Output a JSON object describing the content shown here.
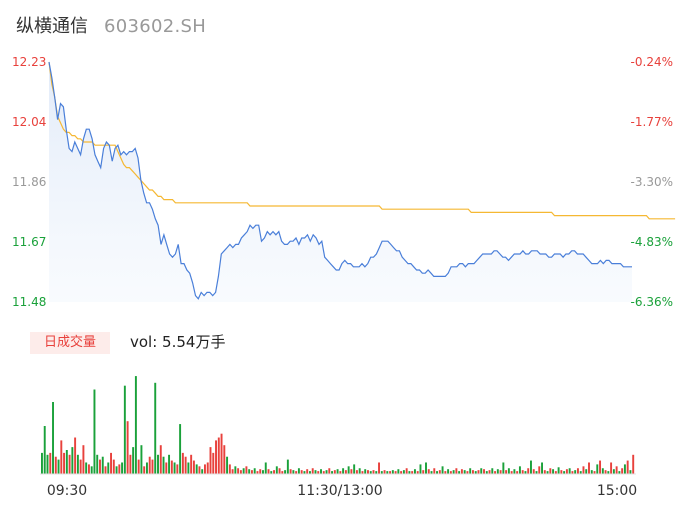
{
  "header": {
    "stock_name": "纵横通信",
    "stock_code": "603602.SH"
  },
  "volume": {
    "badge_label": "日成交量",
    "vol_prefix": "vol: ",
    "vol_value": "5.54万手"
  },
  "colors": {
    "up": "#e8413c",
    "down": "#1aa13a",
    "neutral": "#999999",
    "price_line": "#4a7fd9",
    "avg_line": "#f5b833"
  },
  "chart_data": [
    {
      "type": "line",
      "title": "",
      "xlabel": "",
      "ylabel": "",
      "x_ticks": [
        "09:30",
        "11:30/13:00",
        "15:00"
      ],
      "y_ticks_left": [
        "12.23",
        "12.04",
        "11.86",
        "11.67",
        "11.48"
      ],
      "y_ticks_right": [
        "-0.24%",
        "-1.77%",
        "-3.30%",
        "-4.83%",
        "-6.36%"
      ],
      "ylim": [
        11.48,
        12.23
      ],
      "grid": false,
      "series": [
        {
          "values": [
            12.23,
            12.18,
            12.12,
            12.05,
            12.1,
            12.09,
            12.02,
            11.96,
            11.95,
            11.98,
            11.96,
            11.94,
            11.99,
            12.02,
            12.02,
            11.99,
            11.94,
            11.92,
            11.9,
            11.96,
            11.98,
            11.97,
            11.92,
            11.96,
            11.97,
            11.94,
            11.95,
            11.94,
            11.95,
            11.95,
            11.96,
            11.93,
            11.86,
            11.82,
            11.79,
            11.79,
            11.77,
            11.74,
            11.72,
            11.66,
            11.69,
            11.66,
            11.63,
            11.62,
            11.63,
            11.66,
            11.6,
            11.6,
            11.58,
            11.57,
            11.54,
            11.5,
            11.49,
            11.51,
            11.5,
            11.51,
            11.51,
            11.5,
            11.51,
            11.56,
            11.63,
            11.64,
            11.65,
            11.66,
            11.65,
            11.66,
            11.66,
            11.68,
            11.69,
            11.7,
            11.72,
            11.71,
            11.72,
            11.72,
            11.67,
            11.68,
            11.7,
            11.69,
            11.7,
            11.69,
            11.7,
            11.67,
            11.66,
            11.66,
            11.67,
            11.67,
            11.68,
            11.66,
            11.68,
            11.68,
            11.69,
            11.67,
            11.69,
            11.68,
            11.66,
            11.67,
            11.62,
            11.61,
            11.6,
            11.59,
            11.58,
            11.58,
            11.6,
            11.61,
            11.6,
            11.6,
            11.59,
            11.59,
            11.59,
            11.6,
            11.59,
            11.6,
            11.62,
            11.62,
            11.63,
            11.65,
            11.67,
            11.67,
            11.67,
            11.66,
            11.65,
            11.64,
            11.64,
            11.62,
            11.61,
            11.6,
            11.6,
            11.59,
            11.58,
            11.58,
            11.57,
            11.57,
            11.58,
            11.57,
            11.56,
            11.56,
            11.56,
            11.56,
            11.56,
            11.57,
            11.59,
            11.59,
            11.59,
            11.6,
            11.6,
            11.59,
            11.6,
            11.6,
            11.6,
            11.61,
            11.62,
            11.63,
            11.63,
            11.63,
            11.63,
            11.64,
            11.64,
            11.63,
            11.62,
            11.62,
            11.61,
            11.62,
            11.63,
            11.63,
            11.63,
            11.64,
            11.63,
            11.63,
            11.64,
            11.64,
            11.64,
            11.63,
            11.63,
            11.63,
            11.62,
            11.62,
            11.63,
            11.63,
            11.63,
            11.62,
            11.63,
            11.63,
            11.64,
            11.64,
            11.63,
            11.63,
            11.63,
            11.62,
            11.61,
            11.6,
            11.6,
            11.6,
            11.61,
            11.6,
            11.61,
            11.61,
            11.6,
            11.6,
            11.6,
            11.6,
            11.59,
            11.59,
            11.59,
            11.59
          ]
        },
        {
          "values": [
            12.23,
            12.16,
            12.12,
            12.06,
            12.04,
            12.02,
            12.01,
            12.01,
            12.0,
            12.0,
            11.99,
            11.99,
            11.98,
            11.98,
            11.98,
            11.98,
            11.97,
            11.97,
            11.97,
            11.97,
            11.97,
            11.97,
            11.97,
            11.97,
            11.95,
            11.93,
            11.91,
            11.9,
            11.9,
            11.89,
            11.88,
            11.87,
            11.86,
            11.85,
            11.84,
            11.83,
            11.83,
            11.82,
            11.81,
            11.81,
            11.8,
            11.8,
            11.8,
            11.8,
            11.79,
            11.79,
            11.79,
            11.79,
            11.79,
            11.79,
            11.79,
            11.79,
            11.79,
            11.79,
            11.79,
            11.79,
            11.79,
            11.79,
            11.79,
            11.79,
            11.79,
            11.79,
            11.79,
            11.79,
            11.79,
            11.79,
            11.79,
            11.79,
            11.79,
            11.79,
            11.78,
            11.78,
            11.78,
            11.78,
            11.78,
            11.78,
            11.78,
            11.78,
            11.78,
            11.78,
            11.78,
            11.78,
            11.78,
            11.78,
            11.78,
            11.78,
            11.78,
            11.78,
            11.78,
            11.78,
            11.78,
            11.78,
            11.78,
            11.78,
            11.78,
            11.78,
            11.78,
            11.78,
            11.78,
            11.78,
            11.78,
            11.78,
            11.78,
            11.78,
            11.78,
            11.78,
            11.78,
            11.78,
            11.78,
            11.78,
            11.78,
            11.78,
            11.78,
            11.78,
            11.78,
            11.78,
            11.77,
            11.77,
            11.77,
            11.77,
            11.77,
            11.77,
            11.77,
            11.77,
            11.77,
            11.77,
            11.77,
            11.77,
            11.77,
            11.77,
            11.77,
            11.77,
            11.77,
            11.77,
            11.77,
            11.77,
            11.77,
            11.77,
            11.77,
            11.77,
            11.77,
            11.77,
            11.77,
            11.77,
            11.77,
            11.77,
            11.77,
            11.76,
            11.76,
            11.76,
            11.76,
            11.76,
            11.76,
            11.76,
            11.76,
            11.76,
            11.76,
            11.76,
            11.76,
            11.76,
            11.76,
            11.76,
            11.76,
            11.76,
            11.76,
            11.76,
            11.76,
            11.76,
            11.76,
            11.76,
            11.76,
            11.76,
            11.76,
            11.76,
            11.76,
            11.76,
            11.75,
            11.75,
            11.75,
            11.75,
            11.75,
            11.75,
            11.75,
            11.75,
            11.75,
            11.75,
            11.75,
            11.75,
            11.75,
            11.75,
            11.75,
            11.75,
            11.75,
            11.75,
            11.75,
            11.75,
            11.75,
            11.75,
            11.75,
            11.75,
            11.75,
            11.75,
            11.75,
            11.75,
            11.75,
            11.75,
            11.75,
            11.75,
            11.75,
            11.74,
            11.74,
            11.74,
            11.74,
            11.74,
            11.74,
            11.74,
            11.74,
            11.74,
            11.74
          ]
        }
      ]
    },
    {
      "type": "bar",
      "title": "",
      "xlabel": "",
      "ylabel": "",
      "ylim": [
        0,
        100
      ],
      "grid": false,
      "series": [
        {
          "values": [
            22,
            50,
            20,
            22,
            75,
            18,
            15,
            35,
            22,
            25,
            20,
            28,
            38,
            20,
            15,
            30,
            12,
            10,
            8,
            88,
            20,
            15,
            18,
            8,
            12,
            22,
            15,
            8,
            10,
            12,
            92,
            55,
            20,
            28,
            102,
            15,
            30,
            8,
            12,
            18,
            15,
            95,
            20,
            30,
            18,
            12,
            20,
            14,
            12,
            10,
            52,
            22,
            18,
            12,
            20,
            14,
            10,
            8,
            5,
            10,
            12,
            28,
            22,
            35,
            38,
            42,
            30,
            18,
            10,
            5,
            8,
            6,
            4,
            6,
            8,
            5,
            4,
            6,
            3,
            5,
            4,
            12,
            5,
            3,
            4,
            8,
            6,
            3,
            4,
            15,
            5,
            4,
            3,
            6,
            4,
            3,
            5,
            3,
            6,
            4,
            3,
            5,
            3,
            4,
            6,
            3,
            4,
            5,
            3,
            6,
            4,
            8,
            5,
            10,
            4,
            6,
            3,
            5,
            4,
            3,
            4,
            3,
            12,
            3,
            4,
            3,
            3,
            4,
            3,
            5,
            3,
            4,
            6,
            3,
            3,
            5,
            3,
            10,
            4,
            12,
            5,
            3,
            6,
            3,
            4,
            8,
            3,
            5,
            3,
            4,
            6,
            3,
            5,
            4,
            3,
            6,
            4,
            3,
            4,
            6,
            5,
            3,
            4,
            6,
            3,
            5,
            4,
            12,
            4,
            6,
            3,
            5,
            3,
            8,
            4,
            3,
            6,
            14,
            5,
            3,
            8,
            12,
            4,
            3,
            6,
            5,
            3,
            7,
            4,
            3,
            5,
            6,
            3,
            4,
            6,
            3,
            8,
            5,
            12,
            4,
            3,
            10,
            14,
            6,
            4,
            3,
            12,
            5,
            8,
            3,
            6,
            10,
            14,
            4,
            20
          ],
          "colors_up": [
            0,
            0,
            0,
            1,
            0,
            1,
            0,
            1,
            1,
            0,
            1,
            0,
            1,
            0,
            1,
            1,
            0,
            1,
            0,
            0,
            0,
            1,
            0,
            1,
            0,
            1,
            1,
            0,
            1,
            0,
            0,
            1,
            1,
            0,
            0,
            1,
            0,
            1,
            0,
            1,
            1,
            0,
            0,
            1,
            0,
            1,
            0,
            1,
            0,
            1,
            0,
            1,
            1,
            0,
            1,
            1,
            0,
            1,
            0,
            1,
            1,
            1,
            1,
            1,
            1,
            1,
            1,
            0,
            1,
            1,
            0,
            1,
            1,
            0,
            1,
            0,
            1,
            0,
            1,
            1,
            0,
            0,
            1,
            0,
            1,
            0,
            1,
            1,
            0,
            0,
            1,
            0,
            1,
            0,
            1,
            0,
            1,
            0,
            1,
            0,
            1,
            0,
            1,
            0,
            1,
            0,
            1,
            0,
            1,
            0,
            1,
            0,
            1,
            0,
            1,
            0,
            1,
            0,
            1,
            0,
            1,
            0,
            1,
            0,
            1,
            0,
            1,
            0,
            1,
            0,
            1,
            0,
            1,
            0,
            1,
            0,
            1,
            0,
            1,
            0,
            1,
            0,
            1,
            0,
            1,
            0,
            1,
            0,
            1,
            0,
            1,
            0,
            1,
            0,
            1,
            0,
            1,
            0,
            1,
            0,
            1,
            0,
            1,
            0,
            1,
            0,
            1,
            0,
            1,
            0,
            1,
            0,
            1,
            0,
            1,
            0,
            1,
            0,
            1,
            0,
            1,
            0,
            1,
            0,
            1,
            0,
            1,
            0,
            1,
            0,
            1,
            0,
            1,
            0,
            1,
            0,
            1,
            0,
            1,
            0,
            1,
            0,
            1,
            0,
            1,
            0,
            1,
            0,
            1,
            0,
            1,
            0,
            1,
            0,
            1,
            0,
            1,
            0,
            1,
            0,
            1
          ]
        }
      ]
    }
  ]
}
